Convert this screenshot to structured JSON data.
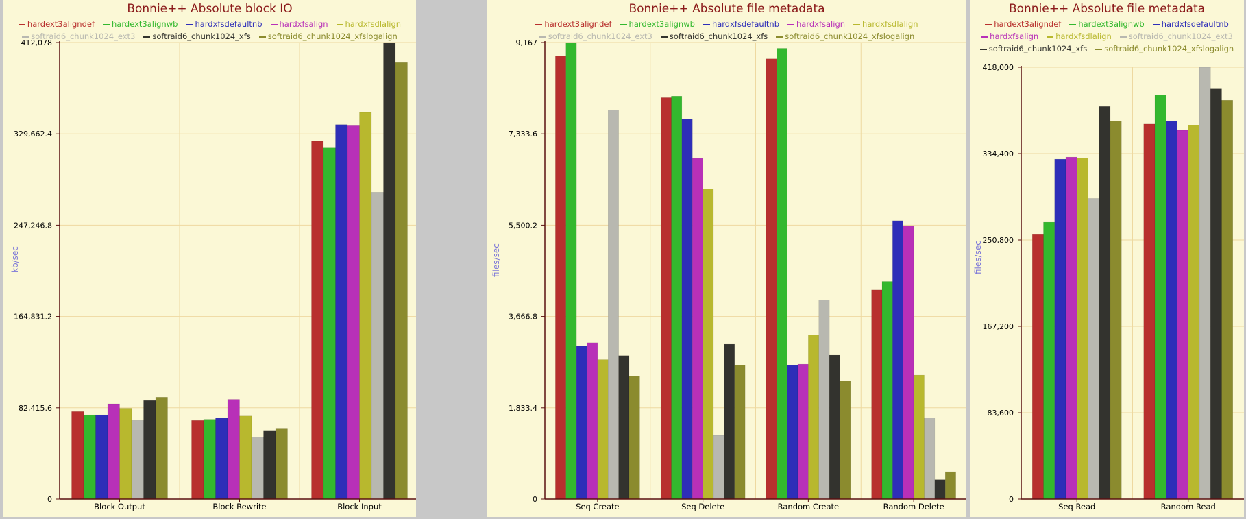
{
  "chart_data": [
    {
      "type": "bar",
      "title": "Bonnie++ Absolute block IO",
      "ylabel": "kb/sec",
      "xlabel": "",
      "grid": true,
      "legend_position": "top",
      "ylim": [
        0,
        412078
      ],
      "yticks": [
        0,
        82415.6,
        164831.2,
        247246.8,
        329662.4,
        412078
      ],
      "ytick_labels": [
        "0",
        "82,415.6",
        "164,831.2",
        "247,246.8",
        "329,662.4",
        "412,078"
      ],
      "categories": [
        "Block Output",
        "Block Rewrite",
        "Block Input"
      ],
      "series": [
        {
          "name": "hardext3aligndef",
          "color": "#b8302e",
          "values": [
            79000,
            71000,
            323000
          ]
        },
        {
          "name": "hardext3alignwb",
          "color": "#33b82e",
          "values": [
            76000,
            72000,
            317000
          ]
        },
        {
          "name": "hardxfsdefaultnb",
          "color": "#2e2eb8",
          "values": [
            76000,
            73000,
            338000
          ]
        },
        {
          "name": "hardxfsalign",
          "color": "#b830b8",
          "values": [
            86000,
            90000,
            337000
          ]
        },
        {
          "name": "hardxfsdlalign",
          "color": "#b8b82e",
          "values": [
            82000,
            75000,
            349000
          ]
        },
        {
          "name": "softraid6_chunk1024_ext3",
          "color": "#b8b8b0",
          "values": [
            71000,
            56000,
            277000
          ]
        },
        {
          "name": "softraid6_chunk1024_xfs",
          "color": "#33332e",
          "values": [
            89000,
            62000,
            412078
          ]
        },
        {
          "name": "softraid6_chunk1024_xfslogalign",
          "color": "#8b8b2e",
          "values": [
            92000,
            64000,
            394000
          ]
        }
      ]
    },
    {
      "type": "bar",
      "title": "Bonnie++ Absolute file metadata",
      "ylabel": "files/sec",
      "xlabel": "",
      "grid": true,
      "legend_position": "top",
      "ylim": [
        0,
        9167
      ],
      "yticks": [
        0,
        1833.4,
        3666.8,
        5500.2,
        7333.6,
        9167
      ],
      "ytick_labels": [
        "0",
        "1,833.4",
        "3,666.8",
        "5,500.2",
        "7,333.6",
        "9,167"
      ],
      "categories": [
        "Seq Create",
        "Seq Delete",
        "Random Create",
        "Random Delete"
      ],
      "series": [
        {
          "name": "hardext3aligndef",
          "color": "#b8302e",
          "values": [
            8900,
            8060,
            8840,
            4200
          ]
        },
        {
          "name": "hardext3alignwb",
          "color": "#33b82e",
          "values": [
            9167,
            8090,
            9050,
            4370
          ]
        },
        {
          "name": "hardxfsdefaultnb",
          "color": "#2e2eb8",
          "values": [
            3070,
            7630,
            2690,
            5590
          ]
        },
        {
          "name": "hardxfsalign",
          "color": "#b830b8",
          "values": [
            3140,
            6840,
            2710,
            5490
          ]
        },
        {
          "name": "hardxfsdlalign",
          "color": "#b8b82e",
          "values": [
            2800,
            6230,
            3300,
            2490
          ]
        },
        {
          "name": "softraid6_chunk1024_ext3",
          "color": "#b8b8b0",
          "values": [
            7810,
            1280,
            4000,
            1630
          ]
        },
        {
          "name": "softraid6_chunk1024_xfs",
          "color": "#33332e",
          "values": [
            2880,
            3110,
            2890,
            390
          ]
        },
        {
          "name": "softraid6_chunk1024_xfslogalign",
          "color": "#8b8b2e",
          "values": [
            2470,
            2690,
            2370,
            550
          ]
        }
      ]
    },
    {
      "type": "bar",
      "title": "Bonnie++ Absolute file metadata",
      "ylabel": "files/sec",
      "xlabel": "",
      "grid": true,
      "legend_position": "top",
      "ylim": [
        0,
        418000
      ],
      "yticks": [
        0,
        83600,
        167200,
        250800,
        334400,
        418000
      ],
      "ytick_labels": [
        "0",
        "83,600",
        "167,200",
        "250,800",
        "334,400",
        "418,000"
      ],
      "categories": [
        "Seq Read",
        "Random Read"
      ],
      "series": [
        {
          "name": "hardext3aligndef",
          "color": "#b8302e",
          "values": [
            256000,
            363000
          ]
        },
        {
          "name": "hardext3alignwb",
          "color": "#33b82e",
          "values": [
            268000,
            391000
          ]
        },
        {
          "name": "hardxfsdefaultnb",
          "color": "#2e2eb8",
          "values": [
            329000,
            366000
          ]
        },
        {
          "name": "hardxfsalign",
          "color": "#b830b8",
          "values": [
            331000,
            357000
          ]
        },
        {
          "name": "hardxfsdlalign",
          "color": "#b8b82e",
          "values": [
            330000,
            362000
          ]
        },
        {
          "name": "softraid6_chunk1024_ext3",
          "color": "#b8b8b0",
          "values": [
            291000,
            418000
          ]
        },
        {
          "name": "softraid6_chunk1024_xfs",
          "color": "#33332e",
          "values": [
            380000,
            397000
          ]
        },
        {
          "name": "softraid6_chunk1024_xfslogalign",
          "color": "#8b8b2e",
          "values": [
            366000,
            386000
          ]
        }
      ]
    }
  ]
}
